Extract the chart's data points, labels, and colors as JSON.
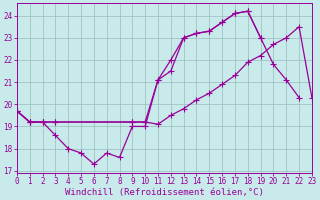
{
  "bg_color": "#c8eaea",
  "line_color": "#990099",
  "grid_color": "#9bbcbc",
  "xlabel": "Windchill (Refroidissement éolien,°C)",
  "xlim": [
    0,
    23
  ],
  "ylim": [
    16.9,
    24.55
  ],
  "yticks": [
    17,
    18,
    19,
    20,
    21,
    22,
    23,
    24
  ],
  "xticks": [
    0,
    1,
    2,
    3,
    4,
    5,
    6,
    7,
    8,
    9,
    10,
    11,
    12,
    13,
    14,
    15,
    16,
    17,
    18,
    19,
    20,
    21,
    22,
    23
  ],
  "curve1_x": [
    0,
    1,
    2,
    3,
    4,
    5,
    6,
    7,
    8,
    9,
    10,
    11,
    12,
    13,
    14,
    15,
    16,
    17,
    18,
    19,
    20,
    21,
    22
  ],
  "curve1_y": [
    19.7,
    19.2,
    19.2,
    18.6,
    18.0,
    17.8,
    17.3,
    17.8,
    17.6,
    19.0,
    19.0,
    21.1,
    21.5,
    23.0,
    23.2,
    23.3,
    23.7,
    24.1,
    24.2,
    23.0,
    21.8,
    21.1,
    20.3
  ],
  "curve2_x": [
    0,
    1,
    2,
    3,
    9,
    10,
    11,
    12,
    13,
    14,
    15,
    16,
    17,
    18,
    19
  ],
  "curve2_y": [
    19.7,
    19.2,
    19.2,
    19.2,
    19.2,
    19.2,
    21.1,
    22.0,
    23.0,
    23.2,
    23.3,
    23.7,
    24.1,
    24.2,
    23.0
  ],
  "curve3_x": [
    0,
    1,
    2,
    3,
    9,
    10,
    11,
    12,
    13,
    14,
    15,
    16,
    17,
    18,
    19,
    20,
    21,
    22,
    23
  ],
  "curve3_y": [
    19.7,
    19.2,
    19.2,
    19.2,
    19.2,
    19.2,
    19.1,
    19.5,
    19.8,
    20.2,
    20.5,
    20.9,
    21.3,
    21.9,
    22.2,
    22.7,
    23.0,
    23.5,
    20.3
  ],
  "tick_fontsize": 5.5,
  "label_fontsize": 6.5,
  "marker_size": 2.0,
  "line_width": 0.9
}
